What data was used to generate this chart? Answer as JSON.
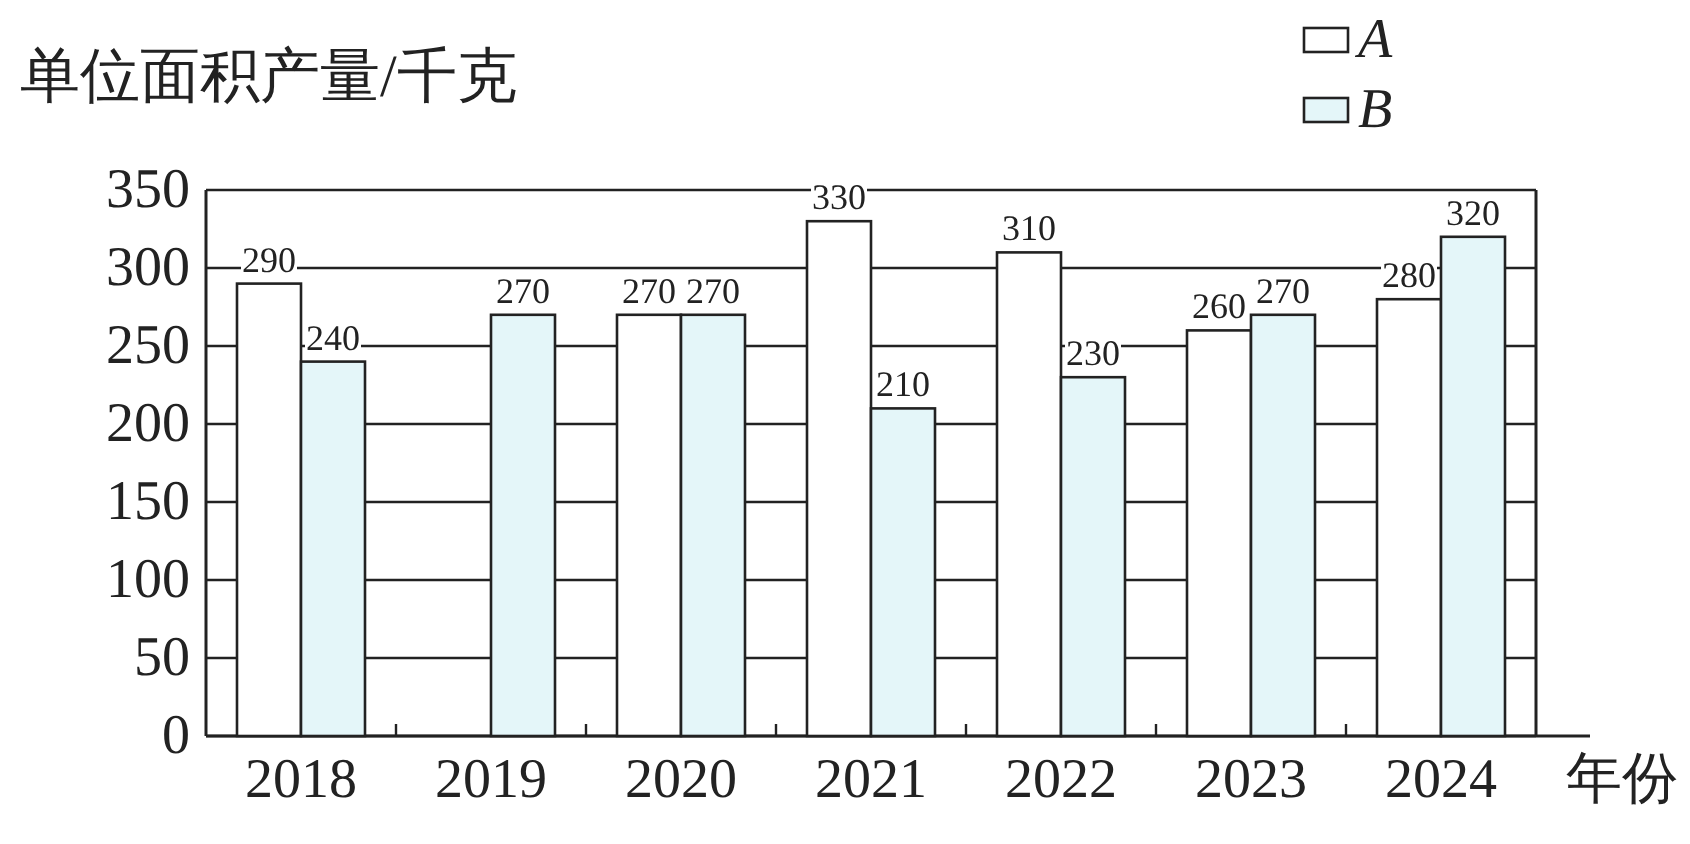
{
  "chart_data": {
    "type": "bar",
    "ylabel": "单位面积产量/千克",
    "xlabel": "年份",
    "categories": [
      "2018",
      "2019",
      "2020",
      "2021",
      "2022",
      "2023",
      "2024"
    ],
    "series": [
      {
        "name": "A",
        "color": "#ffffff",
        "values": [
          290,
          null,
          270,
          330,
          310,
          260,
          280
        ]
      },
      {
        "name": "B",
        "color": "#e4f6f9",
        "values": [
          240,
          270,
          270,
          210,
          230,
          270,
          320
        ]
      }
    ],
    "ylim": [
      0,
      350
    ],
    "yticks": [
      0,
      50,
      100,
      150,
      200,
      250,
      300,
      350
    ],
    "grid": "y",
    "legend": "top right",
    "data_labels": true
  }
}
